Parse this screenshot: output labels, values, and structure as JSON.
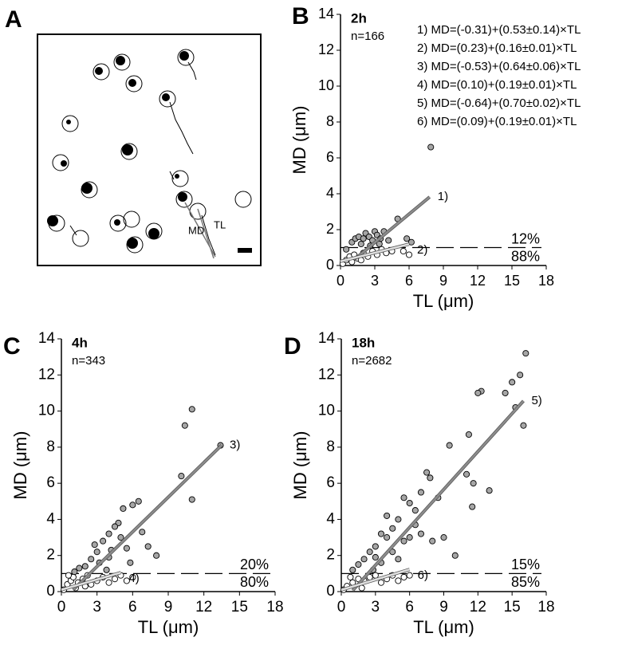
{
  "panel_labels": [
    "A",
    "B",
    "C",
    "D"
  ],
  "image_labels": [
    "MD",
    "TL"
  ],
  "chart_data": [
    {
      "type": "scatter",
      "title": "2h",
      "subtitle": "n=166",
      "xlabel": "TL (μm)",
      "ylabel": "MD (μm)",
      "xlim": [
        0,
        18
      ],
      "ylim": [
        0,
        14
      ],
      "xticks": [
        0,
        3,
        6,
        9,
        12,
        15,
        18
      ],
      "yticks": [
        0,
        2,
        4,
        6,
        8,
        10,
        12,
        14
      ],
      "annotations": [
        "1) MD=(-0.31)+(0.53±0.14)×TL",
        "2) MD=(0.23)+(0.16±0.01)×TL",
        "3) MD=(-0.53)+(0.64±0.06)×TL",
        "4) MD=(0.10)+(0.19±0.01)×TL",
        "5) MD=(-0.64)+(0.70±0.02)×TL",
        "6) MD=(0.09)+(0.19±0.01)×TL"
      ],
      "series": [
        {
          "color": "#a6a6a6",
          "x": [
            0.5,
            1,
            1.3,
            1.6,
            2,
            2.2,
            2.5,
            2.8,
            3,
            3.2,
            3.5,
            3.8,
            4.2,
            5,
            5.8,
            6.2,
            7.9,
            1.8,
            2.6,
            3.4
          ],
          "values": [
            0.9,
            1.3,
            1.5,
            1.6,
            1.5,
            1.8,
            1.6,
            1.4,
            1.9,
            1.7,
            1.5,
            1.9,
            1.4,
            2.6,
            1.5,
            1.3,
            6.6,
            1.2,
            1.1,
            1.2
          ]
        },
        {
          "color": "#ffffff",
          "x": [
            0.2,
            0.5,
            0.8,
            1.2,
            1.5,
            2,
            2.4,
            2.8,
            3.2,
            3.6,
            4,
            4.5,
            5.5,
            6,
            1,
            1.8
          ],
          "values": [
            0.1,
            0.3,
            0.5,
            0.6,
            0.4,
            0.7,
            0.5,
            0.8,
            0.6,
            0.9,
            0.7,
            0.8,
            0.8,
            0.6,
            0.2,
            0.3
          ]
        }
      ],
      "fit_lines": [
        {
          "label": "1)",
          "color": "#8c8c8c",
          "x": [
            1.3,
            7.8
          ],
          "values": [
            0.38,
            3.82
          ]
        },
        {
          "label": "2)",
          "color": "#e0e0e0",
          "x": [
            0,
            6
          ],
          "values": [
            0.23,
            1.19
          ]
        }
      ],
      "threshold": 1,
      "threshold_labels": [
        "12%",
        "88%"
      ]
    },
    {
      "type": "scatter",
      "title": "4h",
      "subtitle": "n=343",
      "xlabel": "TL (μm)",
      "ylabel": "MD (μm)",
      "xlim": [
        0,
        18
      ],
      "ylim": [
        0,
        14
      ],
      "xticks": [
        0,
        3,
        6,
        9,
        12,
        15,
        18
      ],
      "yticks": [
        0,
        2,
        4,
        6,
        8,
        10,
        12,
        14
      ],
      "series": [
        {
          "color": "#a6a6a6",
          "x": [
            11,
            10.4,
            13.4,
            10.1,
            11,
            6.5,
            6,
            5.2,
            4.8,
            4.5,
            5,
            4,
            3.5,
            3,
            2.8,
            2.5,
            3.2,
            4,
            5.5,
            7.3,
            8,
            2,
            1.5,
            6.8,
            4.2,
            3.8,
            5.8,
            1.1
          ],
          "values": [
            10.1,
            9.2,
            8.1,
            6.4,
            5.1,
            5,
            4.8,
            4.6,
            3.8,
            3.6,
            3,
            3.2,
            2.8,
            2.2,
            2.6,
            1.8,
            1.6,
            1.9,
            2.4,
            2.5,
            2,
            1.4,
            1.3,
            3.3,
            2.3,
            1.2,
            1.6,
            1.1
          ]
        },
        {
          "color": "#ffffff",
          "x": [
            0.2,
            0.5,
            0.8,
            1,
            1.4,
            1.8,
            2.2,
            2.5,
            3,
            3.5,
            4,
            4.5,
            5,
            5.5,
            6,
            1.2,
            2,
            0.6
          ],
          "values": [
            0.1,
            0.4,
            0.6,
            0.8,
            0.5,
            0.7,
            0.9,
            0.4,
            0.6,
            0.8,
            0.5,
            0.7,
            0.9,
            0.6,
            0.8,
            0.2,
            0.3,
            0.9
          ]
        }
      ],
      "fit_lines": [
        {
          "label": "3)",
          "color": "#8c8c8c",
          "x": [
            1,
            13.5
          ],
          "values": [
            0.11,
            8.11
          ]
        },
        {
          "label": "4)",
          "color": "#e0e0e0",
          "x": [
            0,
            5
          ],
          "values": [
            0.1,
            1.05
          ]
        }
      ],
      "threshold": 1,
      "threshold_labels": [
        "20%",
        "80%"
      ]
    },
    {
      "type": "scatter",
      "title": "18h",
      "subtitle": "n=2682",
      "xlabel": "TL (μm)",
      "ylabel": "MD (μm)",
      "xlim": [
        0,
        18
      ],
      "ylim": [
        0,
        14
      ],
      "xticks": [
        0,
        3,
        6,
        9,
        12,
        15,
        18
      ],
      "yticks": [
        0,
        2,
        4,
        6,
        8,
        10,
        12,
        14
      ],
      "series": [
        {
          "color": "#a6a6a6",
          "x": [
            16.2,
            15.7,
            15,
            14.4,
            15.3,
            12.3,
            12,
            11.2,
            16,
            9.5,
            7.5,
            7.8,
            11,
            11.6,
            13,
            11.5,
            8.5,
            7,
            6.5,
            6,
            5.5,
            5,
            4.5,
            4,
            3.5,
            3,
            2.5,
            2,
            1.5,
            1,
            6,
            7,
            8,
            9,
            10,
            4.5,
            3.5,
            5,
            2.8,
            5.5,
            4,
            6.5,
            3
          ],
          "values": [
            13.2,
            12,
            11.6,
            11,
            10.2,
            11.1,
            11,
            8.7,
            9.2,
            8.1,
            6.6,
            6.3,
            6.5,
            6,
            5.6,
            4.7,
            5.2,
            5.5,
            4.5,
            4.9,
            5.2,
            4,
            3.5,
            3,
            3.2,
            2.5,
            2.2,
            1.8,
            1.5,
            1.2,
            3,
            3.2,
            2.8,
            3,
            2,
            2.2,
            1.6,
            1.8,
            1.2,
            2.8,
            4.2,
            3.7,
            1.9
          ]
        },
        {
          "color": "#ffffff",
          "x": [
            0.2,
            0.5,
            1,
            1.5,
            2,
            2.5,
            3,
            3.5,
            4,
            4.5,
            5,
            5.5,
            6,
            0.8,
            1.8
          ],
          "values": [
            0.1,
            0.3,
            0.5,
            0.7,
            0.6,
            0.8,
            0.9,
            0.5,
            0.7,
            0.9,
            0.6,
            0.8,
            0.9,
            0.8,
            0.2
          ]
        }
      ],
      "fit_lines": [
        {
          "label": "5)",
          "color": "#8c8c8c",
          "x": [
            1,
            16
          ],
          "values": [
            0.06,
            10.56
          ]
        },
        {
          "label": "6)",
          "color": "#e0e0e0",
          "x": [
            0,
            6
          ],
          "values": [
            0.09,
            1.23
          ]
        }
      ],
      "threshold": 1,
      "threshold_labels": [
        "15%",
        "85%"
      ]
    }
  ]
}
